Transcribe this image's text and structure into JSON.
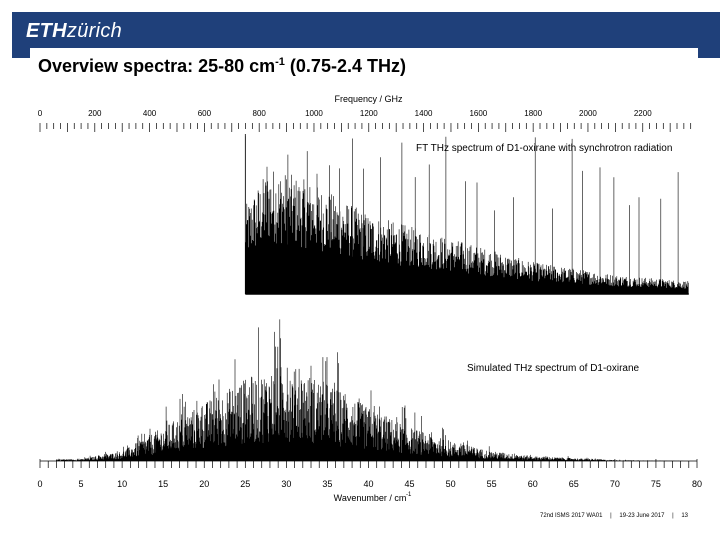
{
  "header": {
    "logo_eth": "ETH",
    "logo_zurich": "zürich",
    "brand_color": "#1f407a"
  },
  "slide": {
    "title_prefix": "Overview spectra: 25-80 cm",
    "title_sup": "-1",
    "title_suffix": " (0.75-2.4 THz)"
  },
  "footer": {
    "event": "72nd ISMS 2017 WA01",
    "separator": "|",
    "date": "19-23 June 2017",
    "page": "13"
  },
  "chart_data": {
    "type": "line",
    "top_axis": {
      "label": "Frequency / GHz",
      "ticks": [
        0,
        200,
        400,
        600,
        800,
        1000,
        1200,
        1400,
        1600,
        1800,
        2000,
        2200
      ],
      "range": [
        0,
        2398
      ]
    },
    "bottom_axis": {
      "label": "Wavenumber / cm",
      "label_sup": "-1",
      "ticks": [
        0,
        5,
        10,
        15,
        20,
        25,
        30,
        35,
        40,
        45,
        50,
        55,
        60,
        65,
        70,
        75,
        80
      ],
      "range": [
        0,
        80
      ]
    },
    "series": [
      {
        "name": "FT THz spectrum of D1-oxirane with synchrotron radiation",
        "x_range": [
          25,
          79
        ],
        "peak_relative_intensity": [
          [
            25,
            0.55
          ],
          [
            28,
            0.8
          ],
          [
            33,
            0.7
          ],
          [
            40,
            0.5
          ],
          [
            50,
            0.35
          ],
          [
            60,
            0.2
          ],
          [
            70,
            0.12
          ],
          [
            79,
            0.08
          ]
        ],
        "color": "#000000"
      },
      {
        "name": "Simulated THz spectrum of D1-oxirane",
        "x_range": [
          2,
          79
        ],
        "peak_relative_intensity": [
          [
            5,
            0.02
          ],
          [
            10,
            0.1
          ],
          [
            15,
            0.35
          ],
          [
            20,
            0.6
          ],
          [
            25,
            0.85
          ],
          [
            30,
            1.0
          ],
          [
            35,
            0.8
          ],
          [
            40,
            0.55
          ],
          [
            45,
            0.35
          ],
          [
            50,
            0.2
          ],
          [
            55,
            0.1
          ],
          [
            60,
            0.05
          ],
          [
            70,
            0.01
          ],
          [
            79,
            0.0
          ]
        ],
        "color": "#000000"
      }
    ]
  }
}
